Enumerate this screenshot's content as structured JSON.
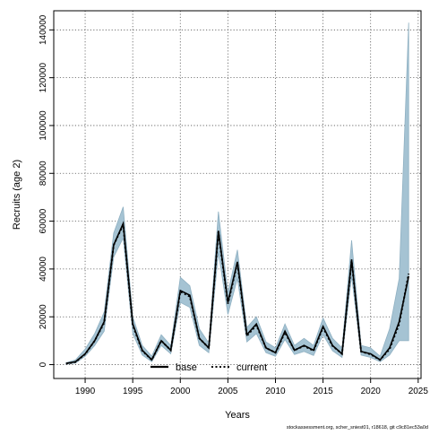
{
  "chart_data": {
    "type": "line",
    "xlabel": "Years",
    "ylabel": "Recruits (age 2)",
    "xlim": [
      1986.7,
      2025.3
    ],
    "ylim": [
      -5800,
      148000
    ],
    "x_ticks": [
      1990,
      1995,
      2000,
      2005,
      2010,
      2015,
      2020,
      2025
    ],
    "y_ticks": [
      0,
      20000,
      40000,
      60000,
      80000,
      100000,
      120000,
      140000
    ],
    "grid": true,
    "legend_position": "bottom-center",
    "legend": [
      {
        "label": "base",
        "style": "solid"
      },
      {
        "label": "current",
        "style": "dotted"
      }
    ],
    "footer": "stockassessment.org, scher_sniest01, r18618, git c9c81ec53a0d",
    "colors": {
      "band_fill": "#a5c3d3",
      "band_edge": "#8fb0c2",
      "line": "#000000",
      "grid": "#555555"
    },
    "x": [
      1988,
      1989,
      1990,
      1991,
      1992,
      1993,
      1994,
      1995,
      1996,
      1997,
      1998,
      1999,
      2000,
      2001,
      2002,
      2003,
      2004,
      2005,
      2006,
      2007,
      2008,
      2009,
      2010,
      2011,
      2012,
      2013,
      2014,
      2015,
      2016,
      2017,
      2018,
      2019,
      2020,
      2021,
      2022,
      2023,
      2024
    ],
    "series": [
      {
        "name": "base",
        "values": [
          500,
          1200,
          4500,
          10000,
          18000,
          50000,
          59000,
          17000,
          6000,
          2000,
          10000,
          6000,
          31000,
          29000,
          11000,
          7000,
          56000,
          26000,
          43000,
          12500,
          17000,
          7000,
          5000,
          14000,
          6000,
          8000,
          6000,
          16000,
          8000,
          4500,
          44000,
          5500,
          4500,
          2000,
          7000,
          18000,
          37000
        ]
      },
      {
        "name": "current",
        "values": [
          400,
          1100,
          4400,
          10000,
          17500,
          50000,
          58500,
          16500,
          5800,
          2000,
          10000,
          6000,
          30500,
          28500,
          11000,
          7000,
          55500,
          25500,
          42500,
          12000,
          16500,
          7000,
          5000,
          13500,
          6000,
          7800,
          5800,
          15500,
          7800,
          4500,
          43500,
          5500,
          4300,
          2000,
          6500,
          17000,
          38000
        ]
      }
    ],
    "band": {
      "upper": [
        800,
        2000,
        6500,
        13000,
        22000,
        55000,
        66000,
        20000,
        8000,
        3500,
        12500,
        8000,
        36500,
        33000,
        15000,
        9000,
        64000,
        30000,
        48000,
        15500,
        20000,
        9500,
        7000,
        17000,
        8000,
        11000,
        8000,
        19500,
        11000,
        7000,
        52000,
        8000,
        7000,
        3500,
        15000,
        36000,
        143000
      ],
      "lower": [
        200,
        700,
        3500,
        8000,
        14000,
        45000,
        53000,
        13000,
        4000,
        1200,
        8000,
        4500,
        26000,
        24000,
        8000,
        5000,
        47000,
        21000,
        36000,
        9500,
        13000,
        5000,
        3500,
        10500,
        4200,
        5500,
        3800,
        12500,
        5800,
        3000,
        37000,
        4000,
        3000,
        1200,
        4000,
        10000,
        10000
      ]
    }
  }
}
